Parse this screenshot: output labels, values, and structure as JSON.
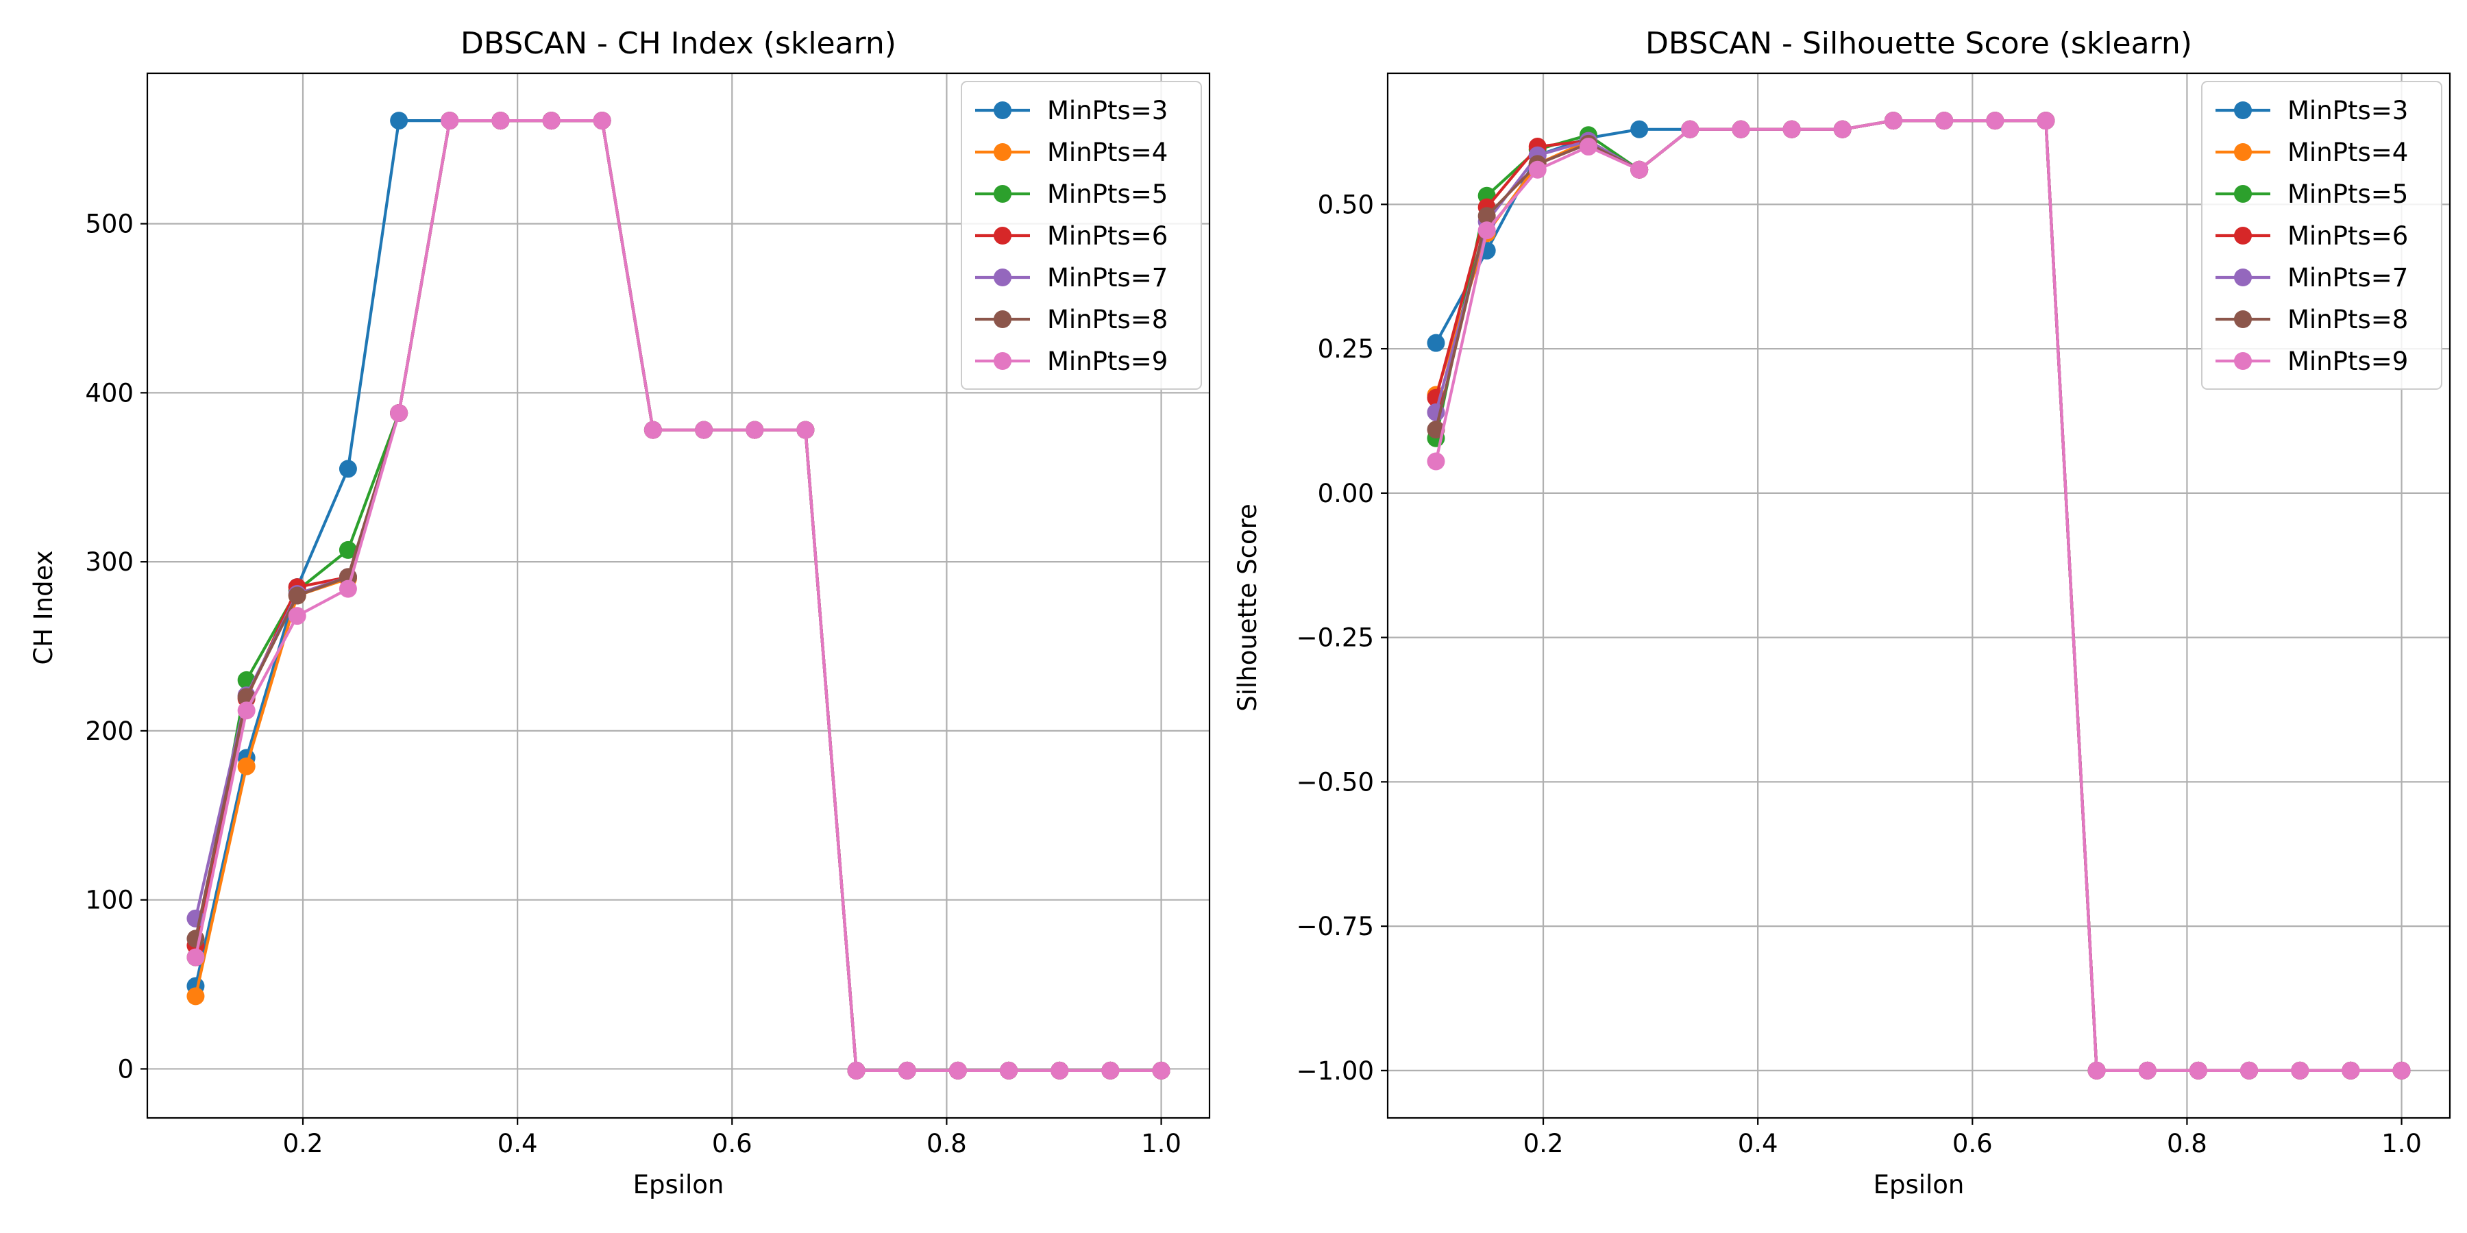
{
  "chart_data": [
    {
      "type": "line",
      "title": "DBSCAN - CH Index (sklearn)",
      "xlabel": "Epsilon",
      "ylabel": "CH Index",
      "xlim": [
        0.055,
        1.045
      ],
      "ylim": [
        -29,
        589
      ],
      "xticks": [
        0.2,
        0.4,
        0.6,
        0.8,
        1.0
      ],
      "xtick_labels": [
        "0.2",
        "0.4",
        "0.6",
        "0.8",
        "1.0"
      ],
      "yticks": [
        0,
        100,
        200,
        300,
        400,
        500
      ],
      "ytick_labels": [
        "0",
        "100",
        "200",
        "300",
        "400",
        "500"
      ],
      "grid": true,
      "legend_position": "top-right",
      "x": [
        0.1,
        0.1474,
        0.1947,
        0.2421,
        0.2895,
        0.3368,
        0.3842,
        0.4316,
        0.4789,
        0.5263,
        0.5737,
        0.6211,
        0.6684,
        0.7158,
        0.7632,
        0.8105,
        0.8579,
        0.9053,
        0.9526,
        1.0
      ],
      "series": [
        {
          "name": "MinPts=3",
          "color": "#1f77b4",
          "values": [
            49,
            184,
            285,
            355,
            561,
            561,
            561,
            561,
            561,
            378,
            378,
            378,
            378,
            -1,
            -1,
            -1,
            -1,
            -1,
            -1,
            -1
          ]
        },
        {
          "name": "MinPts=4",
          "color": "#ff7f0e",
          "values": [
            43,
            179,
            280,
            290,
            388,
            561,
            561,
            561,
            561,
            378,
            378,
            378,
            378,
            -1,
            -1,
            -1,
            -1,
            -1,
            -1,
            -1
          ]
        },
        {
          "name": "MinPts=5",
          "color": "#2ca02c",
          "values": [
            66,
            230,
            283,
            307,
            388,
            561,
            561,
            561,
            561,
            378,
            378,
            378,
            378,
            -1,
            -1,
            -1,
            -1,
            -1,
            -1,
            -1
          ]
        },
        {
          "name": "MinPts=6",
          "color": "#d62728",
          "values": [
            73,
            219,
            285,
            291,
            388,
            561,
            561,
            561,
            561,
            378,
            378,
            378,
            378,
            -1,
            -1,
            -1,
            -1,
            -1,
            -1,
            -1
          ]
        },
        {
          "name": "MinPts=7",
          "color": "#9467bd",
          "values": [
            89,
            221,
            281,
            291,
            388,
            561,
            561,
            561,
            561,
            378,
            378,
            378,
            378,
            -1,
            -1,
            -1,
            -1,
            -1,
            -1,
            -1
          ]
        },
        {
          "name": "MinPts=8",
          "color": "#8c564b",
          "values": [
            77,
            220,
            280,
            291,
            388,
            561,
            561,
            561,
            561,
            378,
            378,
            378,
            378,
            -1,
            -1,
            -1,
            -1,
            -1,
            -1,
            -1
          ]
        },
        {
          "name": "MinPts=9",
          "color": "#e377c2",
          "values": [
            66,
            212,
            268,
            284,
            388,
            561,
            561,
            561,
            561,
            378,
            378,
            378,
            378,
            -1,
            -1,
            -1,
            -1,
            -1,
            -1,
            -1
          ]
        }
      ]
    },
    {
      "type": "line",
      "title": "DBSCAN - Silhouette Score (sklearn)",
      "xlabel": "Epsilon",
      "ylabel": "Silhouette Score",
      "xlim": [
        0.055,
        1.045
      ],
      "ylim": [
        -1.082,
        0.727
      ],
      "xticks": [
        0.2,
        0.4,
        0.6,
        0.8,
        1.0
      ],
      "xtick_labels": [
        "0.2",
        "0.4",
        "0.6",
        "0.8",
        "1.0"
      ],
      "yticks": [
        0.5,
        0.25,
        0.0,
        -0.25,
        -0.5,
        -0.75,
        -1.0
      ],
      "ytick_labels": [
        "0.50",
        "0.25",
        "0.00",
        "−0.25",
        "−0.50",
        "−0.75",
        "−1.00"
      ],
      "grid": true,
      "legend_position": "top-right",
      "x": [
        0.1,
        0.1474,
        0.1947,
        0.2421,
        0.2895,
        0.3368,
        0.3842,
        0.4316,
        0.4789,
        0.5263,
        0.5737,
        0.6211,
        0.6684,
        0.7158,
        0.7632,
        0.8105,
        0.8579,
        0.9053,
        0.9526,
        1.0
      ],
      "series": [
        {
          "name": "MinPts=3",
          "color": "#1f77b4",
          "values": [
            0.26,
            0.42,
            0.585,
            0.615,
            0.63,
            0.63,
            0.63,
            0.63,
            0.63,
            0.645,
            0.645,
            0.645,
            0.645,
            -1.0,
            -1.0,
            -1.0,
            -1.0,
            -1.0,
            -1.0,
            -1.0
          ]
        },
        {
          "name": "MinPts=4",
          "color": "#ff7f0e",
          "values": [
            0.17,
            0.45,
            0.57,
            0.61,
            0.56,
            0.63,
            0.63,
            0.63,
            0.63,
            0.645,
            0.645,
            0.645,
            0.645,
            -1.0,
            -1.0,
            -1.0,
            -1.0,
            -1.0,
            -1.0,
            -1.0
          ]
        },
        {
          "name": "MinPts=5",
          "color": "#2ca02c",
          "values": [
            0.095,
            0.515,
            0.595,
            0.62,
            0.56,
            0.63,
            0.63,
            0.63,
            0.63,
            0.645,
            0.645,
            0.645,
            0.645,
            -1.0,
            -1.0,
            -1.0,
            -1.0,
            -1.0,
            -1.0,
            -1.0
          ]
        },
        {
          "name": "MinPts=6",
          "color": "#d62728",
          "values": [
            0.165,
            0.495,
            0.6,
            0.61,
            0.56,
            0.63,
            0.63,
            0.63,
            0.63,
            0.645,
            0.645,
            0.645,
            0.645,
            -1.0,
            -1.0,
            -1.0,
            -1.0,
            -1.0,
            -1.0,
            -1.0
          ]
        },
        {
          "name": "MinPts=7",
          "color": "#9467bd",
          "values": [
            0.14,
            0.47,
            0.585,
            0.61,
            0.56,
            0.63,
            0.63,
            0.63,
            0.63,
            0.645,
            0.645,
            0.645,
            0.645,
            -1.0,
            -1.0,
            -1.0,
            -1.0,
            -1.0,
            -1.0,
            -1.0
          ]
        },
        {
          "name": "MinPts=8",
          "color": "#8c564b",
          "values": [
            0.11,
            0.48,
            0.57,
            0.605,
            0.56,
            0.63,
            0.63,
            0.63,
            0.63,
            0.645,
            0.645,
            0.645,
            0.645,
            -1.0,
            -1.0,
            -1.0,
            -1.0,
            -1.0,
            -1.0,
            -1.0
          ]
        },
        {
          "name": "MinPts=9",
          "color": "#e377c2",
          "values": [
            0.055,
            0.455,
            0.56,
            0.6,
            0.56,
            0.63,
            0.63,
            0.63,
            0.63,
            0.645,
            0.645,
            0.645,
            0.645,
            -1.0,
            -1.0,
            -1.0,
            -1.0,
            -1.0,
            -1.0,
            -1.0
          ]
        }
      ]
    }
  ]
}
